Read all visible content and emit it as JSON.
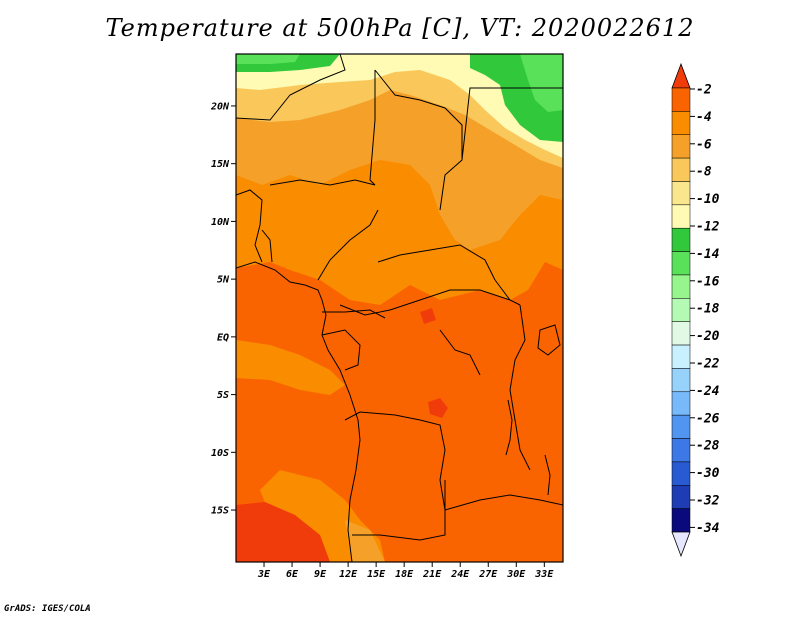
{
  "title": "Temperature at 500hPa [C], VT: 2020022612",
  "credit": "GrADS: IGES/COLA",
  "map": {
    "lon_range": [
      0,
      35
    ],
    "lat_range": [
      -19.5,
      24.5
    ],
    "lat_ticks": [
      "20N",
      "15N",
      "10N",
      "5N",
      "EQ",
      "5S",
      "10S",
      "15S"
    ],
    "lat_values": [
      20,
      15,
      10,
      5,
      0,
      -5,
      -10,
      -15
    ],
    "lon_ticks": [
      "3E",
      "6E",
      "9E",
      "12E",
      "15E",
      "18E",
      "21E",
      "24E",
      "27E",
      "30E",
      "33E"
    ],
    "lon_values": [
      3,
      6,
      9,
      12,
      15,
      18,
      21,
      24,
      27,
      30,
      33
    ]
  },
  "colorbar": {
    "labels": [
      "-2",
      "-4",
      "-6",
      "-8",
      "-10",
      "-12",
      "-14",
      "-16",
      "-18",
      "-20",
      "-22",
      "-24",
      "-26",
      "-28",
      "-30",
      "-32",
      "-34"
    ],
    "colors": [
      "#f03c0a",
      "#fa6400",
      "#fa8c00",
      "#f5a028",
      "#fac85a",
      "#fae68c",
      "#fffab4",
      "#32c83c",
      "#5ae15a",
      "#96f58c",
      "#b4fab4",
      "#e1fae6",
      "#c8f0ff",
      "#96d2fa",
      "#78b9fa",
      "#5096f0",
      "#3c78e6",
      "#285ad2",
      "#1e3cb4",
      "#0a0a7d",
      "#e6e6ff"
    ]
  }
}
